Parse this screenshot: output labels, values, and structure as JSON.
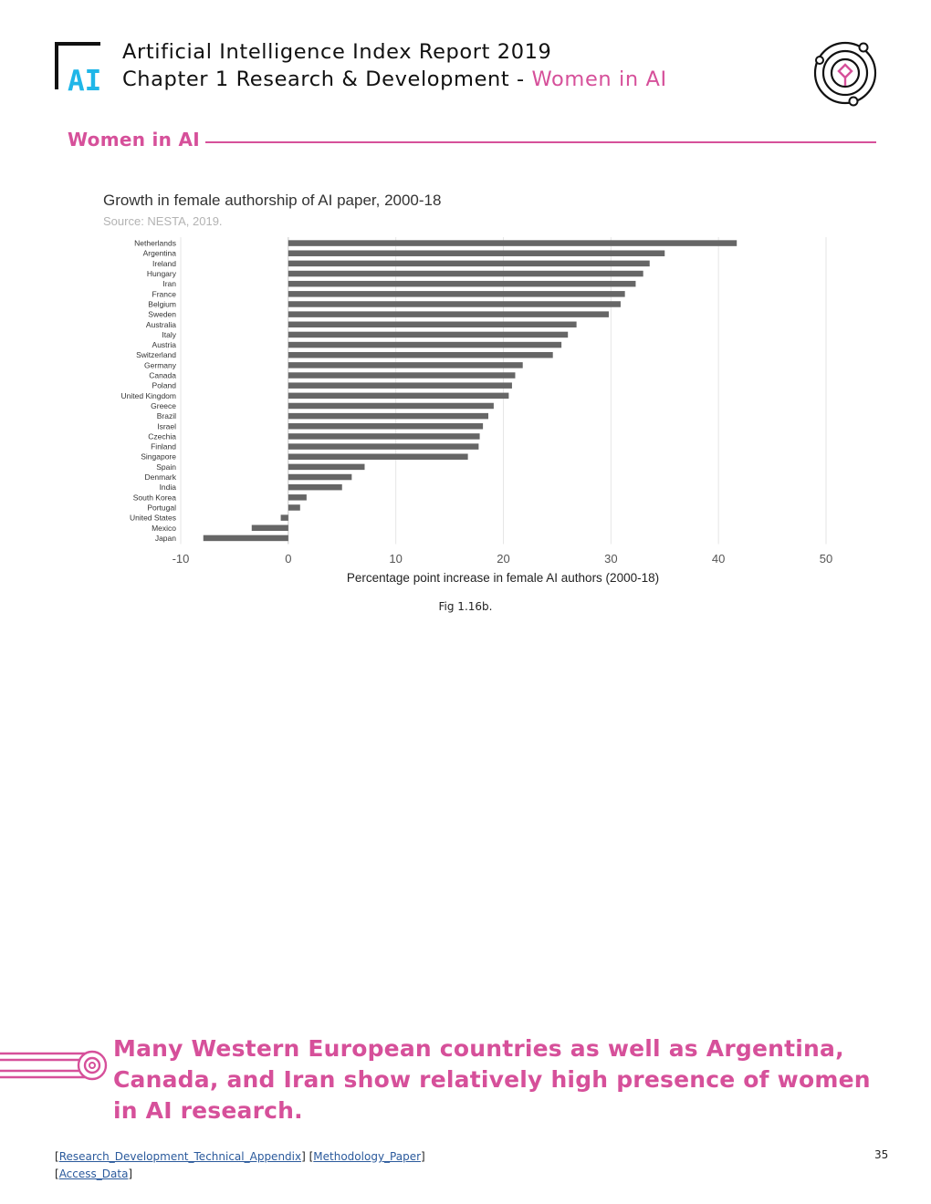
{
  "header": {
    "logo_text": "AI",
    "report_title": "Artificial Intelligence Index Report 2019",
    "chapter": "Chapter 1 Research & Development - ",
    "chapter_section": "Women in AI"
  },
  "section": {
    "title": "Women in AI"
  },
  "figure": {
    "caption": "Fig 1.16b."
  },
  "callout": {
    "text": "Many Western European countries as well as Argentina, Canada, and Iran show relatively high presence of women in AI research."
  },
  "footer": {
    "links": [
      "Research_Development_Technical_Appendix",
      "Methodology_Paper",
      "Access_Data"
    ],
    "page_number": "35"
  },
  "colors": {
    "accent": "#d6509a",
    "bar": "#666666",
    "grid": "#e6e6e6",
    "link": "#2b5a9c"
  },
  "chart_data": {
    "type": "bar",
    "orientation": "horizontal",
    "title": "Growth in female authorship of AI paper, 2000-18",
    "source": "Source: NESTA, 2019.",
    "xlabel": "Percentage point increase in female AI authors (2000-18)",
    "ylabel": "",
    "xlim": [
      -10,
      50
    ],
    "xticks": [
      -10,
      0,
      10,
      20,
      30,
      40,
      50
    ],
    "grid": true,
    "legend": "none",
    "categories": [
      "Netherlands",
      "Argentina",
      "Ireland",
      "Hungary",
      "Iran",
      "France",
      "Belgium",
      "Sweden",
      "Australia",
      "Italy",
      "Austria",
      "Switzerland",
      "Germany",
      "Canada",
      "Poland",
      "United Kingdom",
      "Greece",
      "Brazil",
      "Israel",
      "Czechia",
      "Finland",
      "Singapore",
      "Spain",
      "Denmark",
      "India",
      "South Korea",
      "Portugal",
      "United States",
      "Mexico",
      "Japan"
    ],
    "values": [
      41.7,
      35.0,
      33.6,
      33.0,
      32.3,
      31.3,
      30.9,
      29.8,
      26.8,
      26.0,
      25.4,
      24.6,
      21.8,
      21.1,
      20.8,
      20.5,
      19.1,
      18.6,
      18.1,
      17.8,
      17.7,
      16.7,
      7.1,
      5.9,
      5.0,
      1.7,
      1.1,
      -0.7,
      -3.4,
      -7.9
    ]
  }
}
